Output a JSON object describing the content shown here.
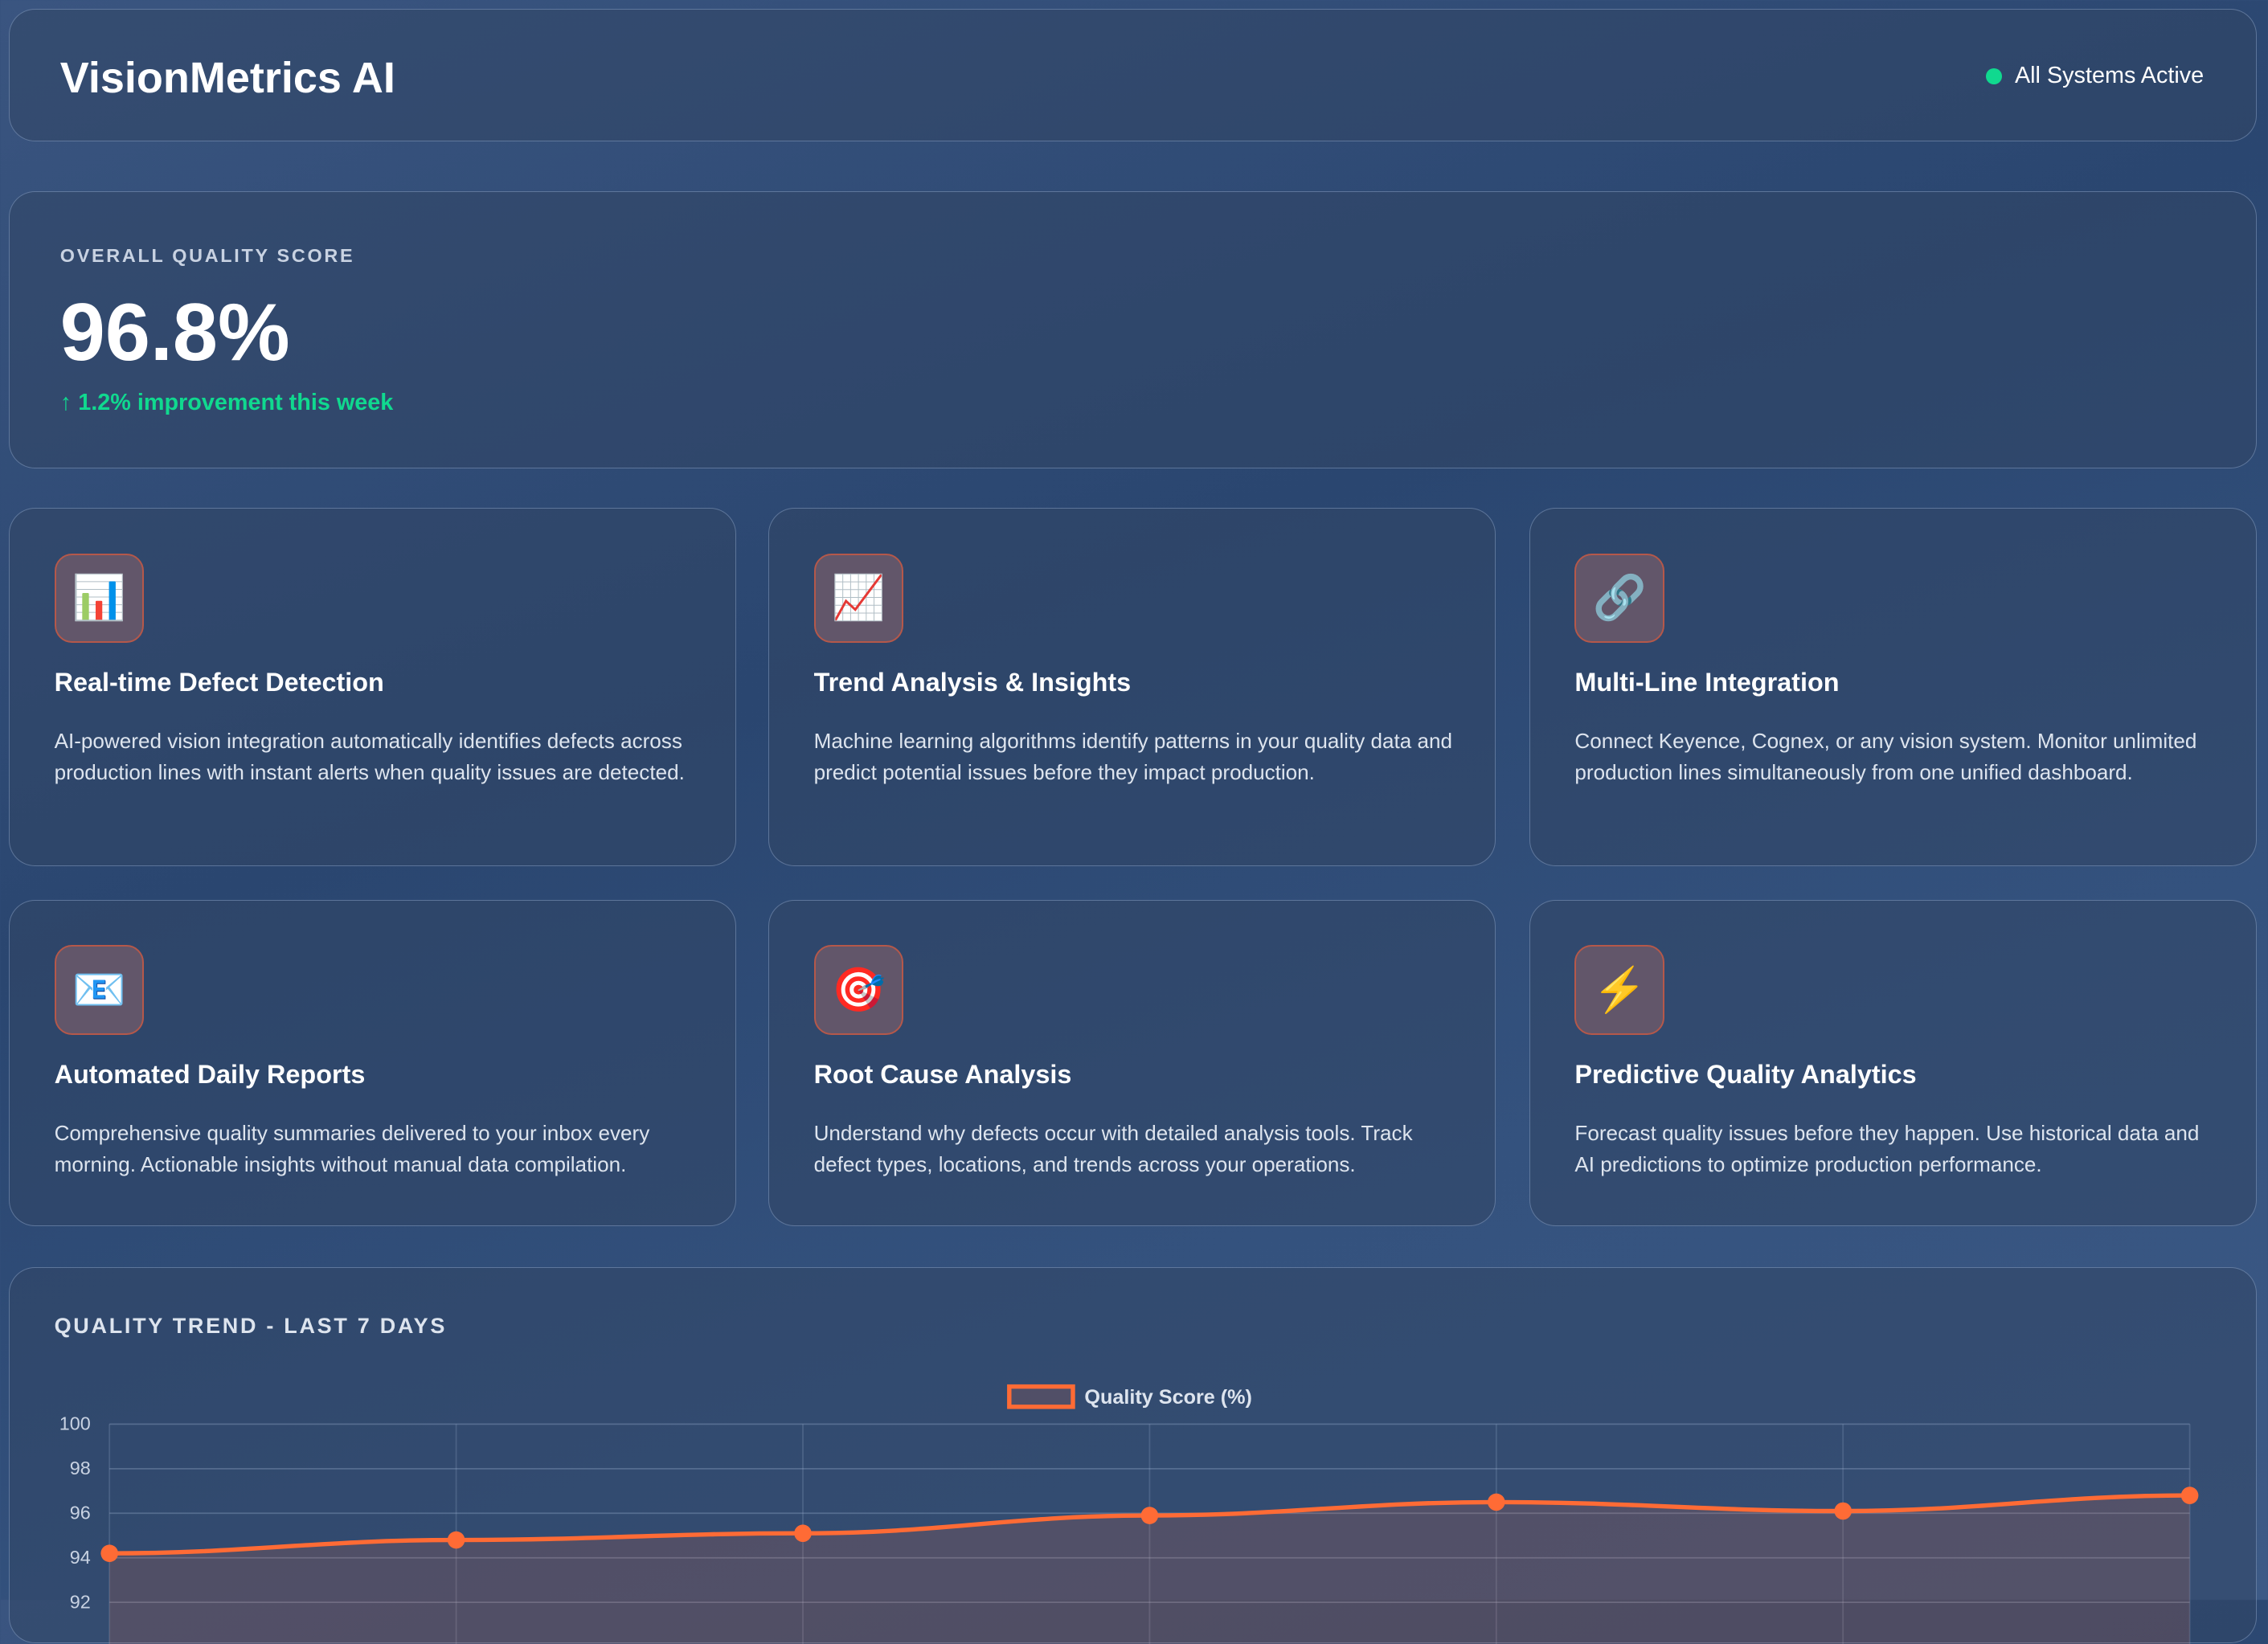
{
  "header": {
    "title": "VisionMetrics AI",
    "status": "All Systems Active",
    "status_color": "#10d98f"
  },
  "score": {
    "label": "OVERALL QUALITY SCORE",
    "value": "96.8%",
    "improvement": "↑ 1.2% improvement this week"
  },
  "features": [
    {
      "icon": "bar-chart-icon",
      "glyph": "📊",
      "title": "Real-time Defect Detection",
      "desc": "AI-powered vision integration automatically identifies defects across production lines with instant alerts when quality issues are detected."
    },
    {
      "icon": "trend-chart-icon",
      "glyph": "📈",
      "title": "Trend Analysis & Insights",
      "desc": "Machine learning algorithms identify patterns in your quality data and predict potential issues before they impact production."
    },
    {
      "icon": "link-icon",
      "glyph": "🔗",
      "title": "Multi-Line Integration",
      "desc": "Connect Keyence, Cognex, or any vision system. Monitor unlimited production lines simultaneously from one unified dashboard."
    },
    {
      "icon": "email-icon",
      "glyph": "📧",
      "title": "Automated Daily Reports",
      "desc": "Comprehensive quality summaries delivered to your inbox every morning. Actionable insights without manual data compilation."
    },
    {
      "icon": "target-icon",
      "glyph": "🎯",
      "title": "Root Cause Analysis",
      "desc": "Understand why defects occur with detailed analysis tools. Track defect types, locations, and trends across your operations."
    },
    {
      "icon": "lightning-icon",
      "glyph": "⚡",
      "title": "Predictive Quality Analytics",
      "desc": "Forecast quality issues before they happen. Use historical data and AI predictions to optimize production performance."
    }
  ],
  "chart_section": {
    "title": "QUALITY TREND - LAST 7 DAYS"
  },
  "chart_data": {
    "type": "line",
    "series": [
      {
        "name": "Quality Score (%)",
        "values": [
          94.2,
          94.8,
          95.1,
          95.9,
          96.5,
          96.1,
          96.8
        ],
        "color": "#ff6b35"
      }
    ],
    "yticks": [
      "100",
      "98",
      "96",
      "94",
      "92"
    ],
    "ylim": [
      92,
      100
    ],
    "grid": true,
    "legend": "top-center",
    "fill": true
  }
}
